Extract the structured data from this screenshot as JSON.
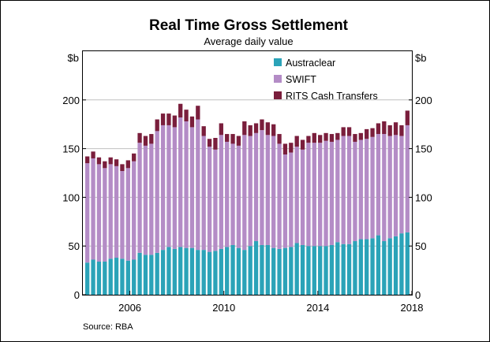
{
  "chart_data": {
    "type": "bar",
    "stacked": true,
    "title": "Real Time Gross Settlement",
    "subtitle": "Average daily value",
    "ylabel_left": "$b",
    "ylabel_right": "$b",
    "ylim": [
      0,
      250
    ],
    "yticks": [
      0,
      50,
      100,
      150,
      200
    ],
    "x_tick_labels": [
      "2006",
      "2010",
      "2014",
      "2018"
    ],
    "x_ticks_at": [
      2006,
      2010,
      2014,
      2018
    ],
    "xlim": [
      2004,
      2018
    ],
    "quarter_labels": [
      "2004-Q1",
      "2004-Q2",
      "2004-Q3",
      "2004-Q4",
      "2005-Q1",
      "2005-Q2",
      "2005-Q3",
      "2005-Q4",
      "2006-Q1",
      "2006-Q2",
      "2006-Q3",
      "2006-Q4",
      "2007-Q1",
      "2007-Q2",
      "2007-Q3",
      "2007-Q4",
      "2008-Q1",
      "2008-Q2",
      "2008-Q3",
      "2008-Q4",
      "2009-Q1",
      "2009-Q2",
      "2009-Q3",
      "2009-Q4",
      "2010-Q1",
      "2010-Q2",
      "2010-Q3",
      "2010-Q4",
      "2011-Q1",
      "2011-Q2",
      "2011-Q3",
      "2011-Q4",
      "2012-Q1",
      "2012-Q2",
      "2012-Q3",
      "2012-Q4",
      "2013-Q1",
      "2013-Q2",
      "2013-Q3",
      "2013-Q4",
      "2014-Q1",
      "2014-Q2",
      "2014-Q3",
      "2014-Q4",
      "2015-Q1",
      "2015-Q2",
      "2015-Q3",
      "2015-Q4",
      "2016-Q1",
      "2016-Q2",
      "2016-Q3",
      "2016-Q4",
      "2017-Q1",
      "2017-Q2",
      "2017-Q3",
      "2017-Q4"
    ],
    "series": [
      {
        "name": "Austraclear",
        "color": "#2BA3B8",
        "values": [
          33,
          36,
          34,
          34,
          37,
          38,
          37,
          35,
          36,
          43,
          41,
          41,
          43,
          46,
          49,
          47,
          49,
          48,
          48,
          46,
          46,
          44,
          45,
          47,
          49,
          51,
          48,
          46,
          50,
          55,
          51,
          51,
          48,
          47,
          48,
          49,
          53,
          51,
          50,
          50,
          50,
          50,
          51,
          54,
          52,
          52,
          55,
          57,
          57,
          58,
          61,
          55,
          58,
          60,
          63,
          64
        ]
      },
      {
        "name": "SWIFT",
        "color": "#B48CC6",
        "values": [
          102,
          104,
          100,
          96,
          97,
          94,
          90,
          95,
          101,
          113,
          112,
          114,
          125,
          128,
          125,
          125,
          133,
          130,
          124,
          134,
          117,
          108,
          104,
          117,
          108,
          104,
          105,
          118,
          113,
          111,
          118,
          113,
          115,
          108,
          96,
          97,
          99,
          98,
          106,
          106,
          106,
          108,
          106,
          105,
          111,
          111,
          102,
          102,
          103,
          104,
          104,
          110,
          105,
          104,
          100,
          110
        ]
      },
      {
        "name": "RITS Cash Transfers",
        "color": "#7A1E3C",
        "values": [
          7,
          7,
          7,
          7,
          7,
          7,
          7,
          8,
          8,
          10,
          10,
          10,
          12,
          12,
          12,
          12,
          14,
          12,
          11,
          14,
          10,
          8,
          12,
          12,
          8,
          10,
          10,
          14,
          11,
          10,
          11,
          13,
          12,
          10,
          11,
          10,
          11,
          10,
          7,
          10,
          8,
          8,
          8,
          7,
          9,
          9,
          8,
          7,
          10,
          9,
          11,
          13,
          11,
          13,
          11,
          15
        ]
      }
    ],
    "legend_position": "top-right",
    "source": "Source:  RBA"
  }
}
